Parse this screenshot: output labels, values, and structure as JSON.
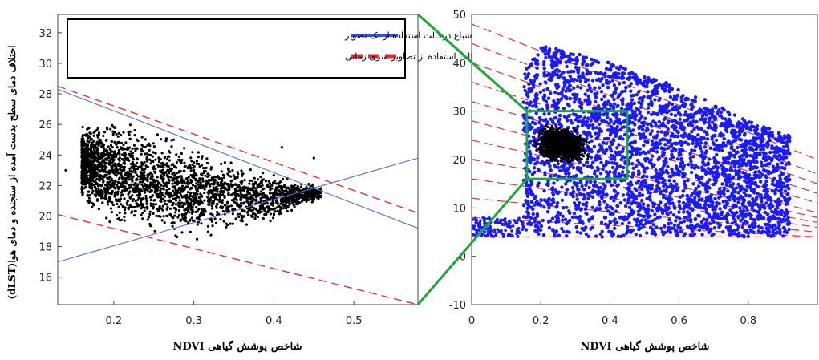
{
  "colors": {
    "scatter_black": "#000000",
    "scatter_blue": "#1a1aff",
    "single_image_line": "#5a6cd6",
    "time_series_line": "#e0303a",
    "zoom_connector": "#1aa83c",
    "zoom_box": "#1aa83c"
  },
  "chart_data": [
    {
      "id": "left",
      "type": "scatter",
      "ylabel": "اختلاف دمای سطح بدست آمده از سنجنده و دمای هوا(dLST)",
      "xlabel": "شاخص پوشش گیاهی NDVI",
      "xlim": [
        0.13,
        0.58
      ],
      "ylim": [
        14.2,
        33.2
      ],
      "xticks": [
        0.2,
        0.3,
        0.4,
        0.5
      ],
      "xtick_labels": [
        "0.2",
        "0.3",
        "0.4",
        "0.5"
      ],
      "yticks": [
        16,
        18,
        20,
        22,
        24,
        26,
        28,
        30,
        32
      ],
      "ytick_labels": [
        "16",
        "18",
        "20",
        "22",
        "24",
        "26",
        "28",
        "30",
        "32"
      ],
      "grid": false,
      "legend_placement": "top",
      "legend": [
        {
          "label": "لبه های خشک واشباع درحالت استفاده از تک تصویر",
          "style": "solid-blue"
        },
        {
          "label": "لبه های خشک واشباع درحالت استفاده از تصاویر سری زمانی",
          "style": "dashed-red"
        }
      ],
      "lines": [
        {
          "series": "single_image",
          "x": [
            0.13,
            0.58
          ],
          "y": [
            28.3,
            19.2
          ]
        },
        {
          "series": "single_image",
          "x": [
            0.13,
            0.58
          ],
          "y": [
            17.0,
            23.8
          ]
        },
        {
          "series": "time_series",
          "x": [
            0.13,
            0.58
          ],
          "y": [
            28.5,
            20.2
          ]
        },
        {
          "series": "time_series",
          "x": [
            0.13,
            0.58
          ],
          "y": [
            20.1,
            14.2
          ]
        }
      ],
      "scatter_cloud": {
        "x_range": [
          0.16,
          0.46
        ],
        "upper_edge": {
          "x": [
            0.16,
            0.2,
            0.3,
            0.4,
            0.46
          ],
          "y": [
            26.4,
            26.9,
            25.0,
            23.0,
            22.0
          ]
        },
        "lower_edge": {
          "x": [
            0.16,
            0.2,
            0.3,
            0.4,
            0.46
          ],
          "y": [
            20.5,
            18.6,
            18.0,
            19.5,
            21.0
          ]
        },
        "outliers": [
          {
            "x": 0.41,
            "y": 24.5
          },
          {
            "x": 0.45,
            "y": 23.8
          },
          {
            "x": 0.14,
            "y": 23.0
          },
          {
            "x": 0.38,
            "y": 22.4
          }
        ]
      }
    },
    {
      "id": "right",
      "type": "scatter",
      "ylabel": "",
      "xlabel": "شاخص پوشش گیاهی NDVI",
      "xlim": [
        0,
        1.0
      ],
      "ylim": [
        -10,
        50
      ],
      "xticks": [
        0,
        0.2,
        0.4,
        0.6,
        0.8
      ],
      "xtick_labels": [
        "0",
        "0.2",
        "0.4",
        "0.6",
        "0.8"
      ],
      "yticks": [
        -10,
        0,
        10,
        20,
        30,
        40,
        50
      ],
      "ytick_labels": [
        "-10",
        "0",
        "10",
        "20",
        "30",
        "40",
        "50"
      ],
      "grid": false,
      "zoom_box": {
        "x": [
          0.16,
          0.45
        ],
        "y": [
          16,
          30
        ]
      },
      "dashed_lines": [
        {
          "x": [
            0,
            1
          ],
          "y": [
            48,
            20
          ]
        },
        {
          "x": [
            0,
            1
          ],
          "y": [
            44,
            17
          ]
        },
        {
          "x": [
            0,
            1
          ],
          "y": [
            40,
            15
          ]
        },
        {
          "x": [
            0,
            1
          ],
          "y": [
            36,
            13
          ]
        },
        {
          "x": [
            0,
            1
          ],
          "y": [
            32,
            11
          ]
        },
        {
          "x": [
            0,
            1
          ],
          "y": [
            28,
            9
          ]
        },
        {
          "x": [
            0,
            1
          ],
          "y": [
            24,
            8
          ]
        },
        {
          "x": [
            0,
            1
          ],
          "y": [
            20,
            7
          ]
        },
        {
          "x": [
            0,
            1
          ],
          "y": [
            16,
            6
          ]
        },
        {
          "x": [
            0,
            1
          ],
          "y": [
            12,
            5
          ]
        },
        {
          "x": [
            0,
            1
          ],
          "y": [
            8,
            4
          ]
        },
        {
          "x": [
            0,
            1
          ],
          "y": [
            4,
            4
          ]
        }
      ],
      "blue_cloud": {
        "upper_edge": {
          "x": [
            0.15,
            0.2,
            0.4,
            0.6,
            0.8,
            0.92
          ],
          "y": [
            38,
            44,
            40,
            35,
            28,
            25
          ]
        },
        "lower_edge": {
          "x": [
            0.15,
            0.2,
            0.4,
            0.6,
            0.8,
            0.92
          ],
          "y": [
            5,
            4,
            4,
            4,
            4,
            4
          ]
        }
      },
      "blue_left_strip": {
        "x": [
          0.0,
          0.15
        ],
        "y": [
          4,
          8
        ]
      },
      "black_cloud": {
        "x_range": [
          0.17,
          0.45
        ],
        "y_range": [
          18,
          28
        ]
      }
    }
  ]
}
